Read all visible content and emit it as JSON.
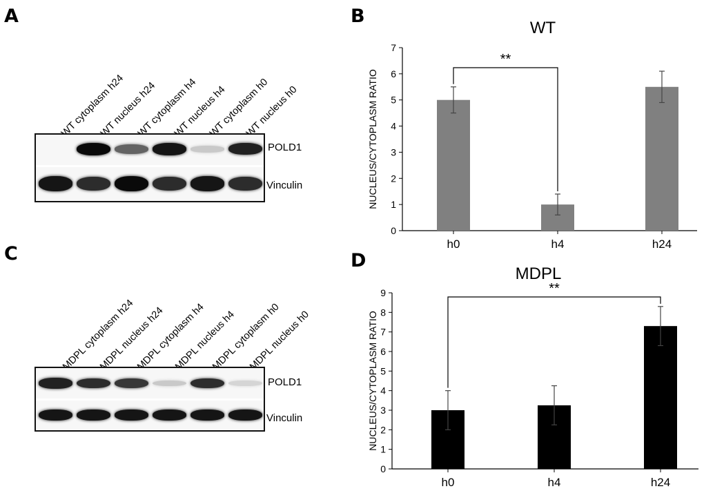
{
  "panels": {
    "A": "A",
    "B": "B",
    "C": "C",
    "D": "D"
  },
  "blot_wt": {
    "lanes": [
      "WT cytoplasm h24",
      "WT nucleus h24",
      "WT cytoplasm h4",
      "WT nucleus h4",
      "WT cytoplasm h0",
      "WT nucleus h0"
    ],
    "rows": [
      "POLD1",
      "Vinculin"
    ],
    "pold1_intensity": [
      0.0,
      1.0,
      0.6,
      0.95,
      0.15,
      0.9
    ],
    "vinculin_intensity": [
      0.95,
      0.85,
      1.0,
      0.85,
      0.95,
      0.85
    ]
  },
  "blot_mdpl": {
    "lanes": [
      "MDPL cytoplasm h24",
      "MDPL nucleus h24",
      "MDPL cytoplasm h4",
      "MDPL nucleus h4",
      "MDPL cytoplasm h0",
      "MDPL nucleus h0"
    ],
    "rows": [
      "POLD1",
      "Vinculin"
    ],
    "pold1_intensity": [
      0.9,
      0.85,
      0.8,
      0.15,
      0.85,
      0.1
    ],
    "vinculin_intensity": [
      0.95,
      0.95,
      0.95,
      0.95,
      0.95,
      0.95
    ]
  },
  "chart_data": [
    {
      "type": "bar",
      "title": "WT",
      "xlabel": "",
      "ylabel": "NUCLEUS/CYTOPLASM  RATIO",
      "categories": [
        "h0",
        "h4",
        "h24"
      ],
      "values": [
        5.0,
        1.0,
        5.5
      ],
      "errors": [
        0.5,
        0.4,
        0.6
      ],
      "ylim": [
        0,
        7
      ],
      "yticks": [
        0,
        1,
        2,
        3,
        4,
        5,
        6,
        7
      ],
      "bar_color": "#808080",
      "grid": false,
      "significance": {
        "from": "h0",
        "to": "h4",
        "label": "**"
      }
    },
    {
      "type": "bar",
      "title": "MDPL",
      "xlabel": "",
      "ylabel": "NUCLEUS/CYTOPLASM RATIO",
      "categories": [
        "h0",
        "h4",
        "h24"
      ],
      "values": [
        3.0,
        3.25,
        7.3
      ],
      "errors": [
        1.0,
        1.0,
        1.0
      ],
      "ylim": [
        0,
        9
      ],
      "yticks": [
        0,
        1,
        2,
        3,
        4,
        5,
        6,
        7,
        8,
        9
      ],
      "bar_color": "#000000",
      "grid": false,
      "significance": {
        "from": "h0",
        "to": "h24",
        "label": "**"
      }
    }
  ]
}
